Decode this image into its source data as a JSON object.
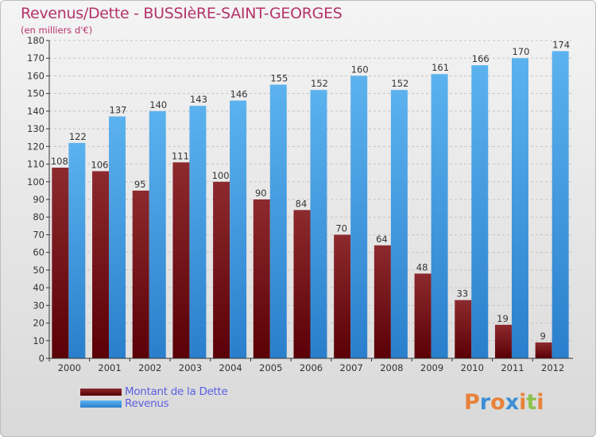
{
  "header": {
    "title": "Revenus/Dette - BUSSIèRE-SAINT-GEORGES",
    "subtitle": "(en milliers d'€)"
  },
  "chart_data": {
    "type": "bar",
    "categories": [
      "2000",
      "2001",
      "2002",
      "2003",
      "2004",
      "2005",
      "2006",
      "2007",
      "2008",
      "2009",
      "2010",
      "2011",
      "2012"
    ],
    "series": [
      {
        "name": "Montant de la Dette",
        "values": [
          108,
          106,
          95,
          111,
          100,
          90,
          84,
          70,
          64,
          48,
          33,
          19,
          9
        ],
        "color": "#6b0a10"
      },
      {
        "name": "Revenus",
        "values": [
          122,
          137,
          140,
          143,
          146,
          155,
          152,
          160,
          152,
          161,
          166,
          170,
          174
        ],
        "color": "#4aa3e6"
      }
    ],
    "y_ticks": [
      0,
      10,
      20,
      30,
      40,
      50,
      60,
      70,
      80,
      90,
      100,
      110,
      120,
      130,
      140,
      150,
      160,
      170,
      180
    ],
    "ylim": [
      0,
      180
    ],
    "grid": true,
    "legend": "bottom-left"
  },
  "legend": {
    "items": [
      {
        "label": "Montant de la Dette",
        "color": "#6b0a10"
      },
      {
        "label": "Revenus",
        "color": "#4aa3e6"
      }
    ]
  },
  "logo": {
    "letters": [
      "P",
      "r",
      "o",
      "x",
      "i",
      "t",
      "i"
    ],
    "colors": [
      "#e8823a",
      "#3c8fd6",
      "#e8823a",
      "#3c8fd6",
      "#e8823a",
      "#8bc34a",
      "#e8823a"
    ]
  }
}
